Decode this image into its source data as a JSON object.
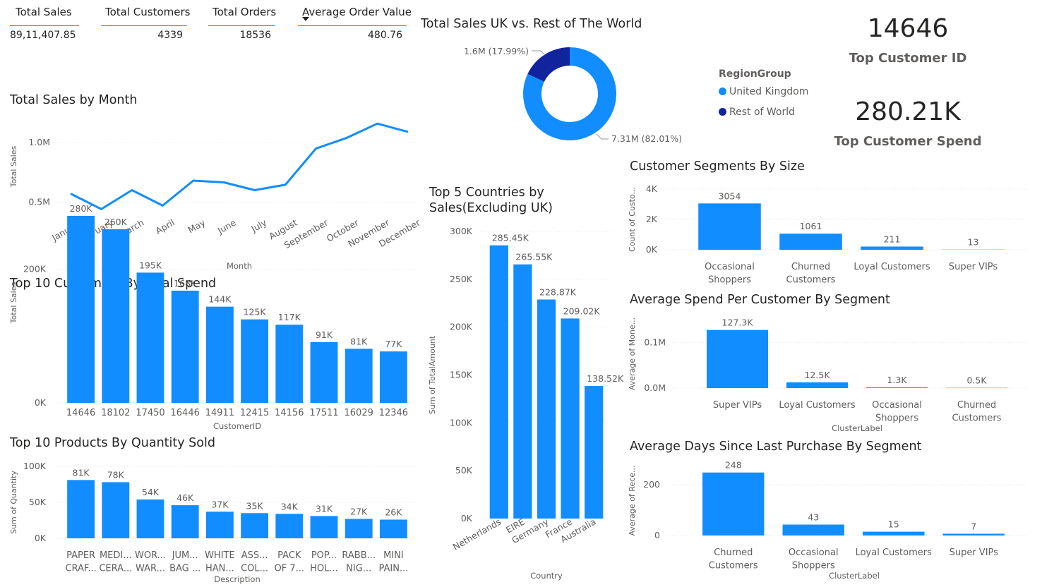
{
  "kpis": [
    {
      "label": "Total Sales",
      "value": "89,11,407.85"
    },
    {
      "label": "Total Customers",
      "value": "4339"
    },
    {
      "label": "Total Orders",
      "value": "18536"
    },
    {
      "label": "Average Order Value",
      "value": "480.76"
    }
  ],
  "top_customer": {
    "id": "14646",
    "id_label": "Top Customer ID",
    "spend": "280.21K",
    "spend_label": "Top Customer Spend"
  },
  "colors": {
    "primary": "#118DFF",
    "dark": "#12239E",
    "grid": "#E6E6E6",
    "text": "#605E5C"
  },
  "chart_data": [
    {
      "id": "sales_by_month",
      "type": "line",
      "title": "Total Sales by Month",
      "xlabel": "Month",
      "ylabel": "Total Sales",
      "categories": [
        "January",
        "February",
        "March",
        "April",
        "May",
        "June",
        "July",
        "August",
        "September",
        "October",
        "November",
        "December"
      ],
      "values": [
        570000,
        440000,
        600000,
        470000,
        680000,
        665000,
        600000,
        645000,
        950000,
        1040000,
        1160000,
        1090000
      ],
      "yticks": [
        {
          "v": 500000,
          "label": "0.5M"
        },
        {
          "v": 1000000,
          "label": "1.0M"
        }
      ],
      "ylim": [
        300000,
        1250000
      ]
    },
    {
      "id": "top10_customers",
      "type": "bar",
      "title": "Top 10 Customers By Total Spend",
      "xlabel": "CustomerID",
      "ylabel": "Total Sales",
      "categories": [
        "14646",
        "18102",
        "17450",
        "16446",
        "14911",
        "12415",
        "14156",
        "17511",
        "16029",
        "12346"
      ],
      "values": [
        280000,
        260000,
        195000,
        168000,
        144000,
        125000,
        117000,
        91000,
        81000,
        77000
      ],
      "data_labels": [
        "280K",
        "260K",
        "195K",
        "168K",
        "144K",
        "125K",
        "117K",
        "91K",
        "81K",
        "77K"
      ],
      "yticks": [
        {
          "v": 0,
          "label": "0K"
        },
        {
          "v": 200000,
          "label": "200K"
        }
      ],
      "ylim": [
        0,
        300000
      ]
    },
    {
      "id": "top10_products",
      "type": "bar",
      "title": "Top 10 Products By Quantity Sold",
      "xlabel": "Description",
      "ylabel": "Sum of Quantity",
      "categories": [
        [
          "PAPER",
          "CRAF..."
        ],
        [
          "MEDI...",
          "CERA..."
        ],
        [
          "WOR...",
          "WAR..."
        ],
        [
          "JUM...",
          "BAG ..."
        ],
        [
          "WHITE",
          "HAN..."
        ],
        [
          "ASS...",
          "COL..."
        ],
        [
          "PACK",
          "OF 7..."
        ],
        [
          "POP...",
          "HOL..."
        ],
        [
          "RABB...",
          "NIG..."
        ],
        [
          "MINI",
          "PAIN..."
        ]
      ],
      "values": [
        81000,
        78000,
        54000,
        46000,
        37000,
        35000,
        34000,
        31000,
        27000,
        26000
      ],
      "data_labels": [
        "81K",
        "78K",
        "54K",
        "46K",
        "37K",
        "35K",
        "34K",
        "31K",
        "27K",
        "26K"
      ],
      "yticks": [
        {
          "v": 0,
          "label": "0K"
        },
        {
          "v": 50000,
          "label": "50K"
        },
        {
          "v": 100000,
          "label": "100K"
        }
      ],
      "ylim": [
        0,
        100000
      ]
    },
    {
      "id": "uk_vs_world",
      "type": "pie",
      "title": "Total Sales UK vs. Rest of The World",
      "legend_title": "RegionGroup",
      "slices": [
        {
          "name": "United Kingdom",
          "value": 7.31,
          "label": "7.31M (82.01%)",
          "color": "#118DFF"
        },
        {
          "name": "Rest of World",
          "value": 1.6,
          "label": "1.6M (17.99%)",
          "color": "#12239E"
        }
      ]
    },
    {
      "id": "top5_countries",
      "type": "bar",
      "title": "Top 5 Countries by Sales(Excluding UK)",
      "title_lines": [
        "Top 5 Countries by",
        "Sales(Excluding UK)"
      ],
      "xlabel": "Country",
      "ylabel": "Sum of TotalAmount",
      "categories": [
        "Netherlands",
        "EIRE",
        "Germany",
        "France",
        "Australia"
      ],
      "values": [
        285450,
        265550,
        228870,
        209020,
        138520
      ],
      "data_labels": [
        "285.45K",
        "265.55K",
        "228.87K",
        "209.02K",
        "138.52K"
      ],
      "yticks": [
        {
          "v": 0,
          "label": "0K"
        },
        {
          "v": 50000,
          "label": "50K"
        },
        {
          "v": 100000,
          "label": "100K"
        },
        {
          "v": 150000,
          "label": "150K"
        },
        {
          "v": 200000,
          "label": "200K"
        },
        {
          "v": 250000,
          "label": "250K"
        },
        {
          "v": 300000,
          "label": "300K"
        }
      ],
      "ylim": [
        0,
        300000
      ]
    },
    {
      "id": "segments_size",
      "type": "bar",
      "title": "Customer Segments By Size",
      "xlabel": "",
      "ylabel": "Count of Custo...",
      "categories": [
        [
          "Occasional",
          "Shoppers"
        ],
        [
          "Churned",
          "Customers"
        ],
        [
          "Loyal Customers"
        ],
        [
          "Super VIPs"
        ]
      ],
      "values": [
        3054,
        1061,
        211,
        13
      ],
      "data_labels": [
        "3054",
        "1061",
        "211",
        "13"
      ],
      "yticks": [
        {
          "v": 0,
          "label": "0K"
        },
        {
          "v": 2000,
          "label": "2K"
        },
        {
          "v": 4000,
          "label": "4K"
        }
      ],
      "ylim": [
        0,
        4000
      ]
    },
    {
      "id": "avg_spend_segment",
      "type": "bar",
      "title": "Average Spend Per Customer By Segment",
      "xlabel": "ClusterLabel",
      "ylabel": "Average of Mone...",
      "categories": [
        [
          "Super VIPs"
        ],
        [
          "Loyal Customers"
        ],
        [
          "Occasional",
          "Shoppers"
        ],
        [
          "Churned",
          "Customers"
        ]
      ],
      "values": [
        127300,
        12500,
        1300,
        500
      ],
      "data_labels": [
        "127.3K",
        "12.5K",
        "1.3K",
        "0.5K"
      ],
      "yticks": [
        {
          "v": 0,
          "label": "0.0M"
        },
        {
          "v": 100000,
          "label": "0.1M"
        }
      ],
      "ylim": [
        0,
        150000
      ]
    },
    {
      "id": "avg_days_segment",
      "type": "bar",
      "title": "Average Days Since Last Purchase By Segment",
      "xlabel": "ClusterLabel",
      "ylabel": "Average of Rece...",
      "categories": [
        [
          "Churned",
          "Customers"
        ],
        [
          "Occasional",
          "Shoppers"
        ],
        [
          "Loyal Customers"
        ],
        [
          "Super VIPs"
        ]
      ],
      "values": [
        248,
        43,
        15,
        7
      ],
      "data_labels": [
        "248",
        "43",
        "15",
        "7"
      ],
      "yticks": [
        {
          "v": 0,
          "label": "0"
        },
        {
          "v": 200,
          "label": "200"
        }
      ],
      "ylim": [
        0,
        275
      ]
    }
  ]
}
